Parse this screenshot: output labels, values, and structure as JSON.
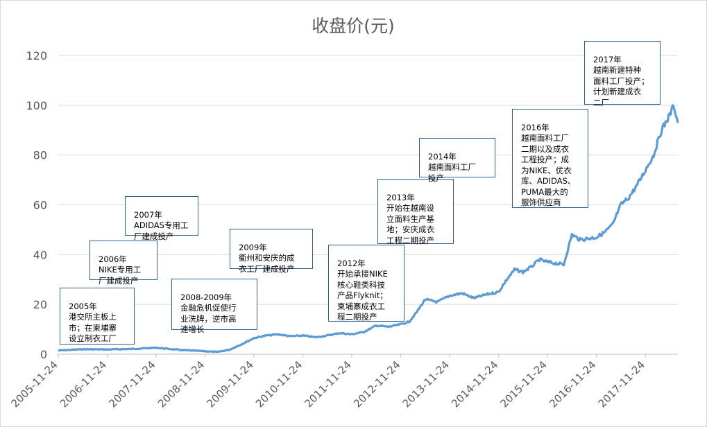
{
  "chart_data": {
    "type": "line",
    "title": "收盘价(元)",
    "xlabel": "",
    "ylabel": "",
    "ylim": [
      0,
      120
    ],
    "yticks": [
      0,
      20,
      40,
      60,
      80,
      100,
      120
    ],
    "grid": true,
    "legend": "none",
    "xticks": [
      "2005-11-24",
      "2006-11-24",
      "2007-11-24",
      "2008-11-24",
      "2009-11-24",
      "2010-11-24",
      "2011-11-24",
      "2012-11-24",
      "2013-11-24",
      "2014-11-24",
      "2015-11-24",
      "2016-11-24",
      "2017-11-24"
    ],
    "series": [
      {
        "color": "#5b9bd5",
        "x": [
          "2005-11-24",
          "2006-05-24",
          "2006-11-24",
          "2007-05-24",
          "2007-11-24",
          "2008-05-24",
          "2008-11-24",
          "2009-02-24",
          "2009-05-24",
          "2009-08-24",
          "2009-11-24",
          "2010-02-24",
          "2010-05-24",
          "2010-08-24",
          "2010-11-24",
          "2011-02-24",
          "2011-05-24",
          "2011-08-24",
          "2011-11-24",
          "2012-02-24",
          "2012-05-24",
          "2012-08-24",
          "2012-11-24",
          "2013-01-24",
          "2013-03-24",
          "2013-05-24",
          "2013-08-24",
          "2013-11-24",
          "2014-02-24",
          "2014-05-24",
          "2014-08-24",
          "2014-11-24",
          "2015-01-24",
          "2015-03-24",
          "2015-05-24",
          "2015-07-24",
          "2015-09-24",
          "2015-11-24",
          "2016-01-24",
          "2016-03-24",
          "2016-05-24",
          "2016-07-24",
          "2016-09-24",
          "2016-11-24",
          "2017-01-24",
          "2017-03-24",
          "2017-05-24",
          "2017-07-24",
          "2017-09-24",
          "2017-11-24",
          "2018-01-24",
          "2018-03-24",
          "2018-05-24",
          "2018-06-24",
          "2018-07-24"
        ],
        "values": [
          1.5,
          2.0,
          1.9,
          2.1,
          2.6,
          1.7,
          1.2,
          0.9,
          1.8,
          4.0,
          6.5,
          7.5,
          8.0,
          7.2,
          7.5,
          6.8,
          7.5,
          8.5,
          8.0,
          9.0,
          11.5,
          11.0,
          12.0,
          13.0,
          17.0,
          22.0,
          21.0,
          23.5,
          24.5,
          22.5,
          24.0,
          25.0,
          30.0,
          34.0,
          33.0,
          35.0,
          38.0,
          37.0,
          36.5,
          36.0,
          48.0,
          46.0,
          46.5,
          47.0,
          49.0,
          52.0,
          60.0,
          63.0,
          68.0,
          74.0,
          80.0,
          90.0,
          96.0,
          100.0,
          93.0
        ]
      }
    ]
  },
  "annotations": [
    {
      "year": "2005年",
      "text": "港交所主板上\n市；在柬埔寨\n设立制衣工厂"
    },
    {
      "year": "2006年",
      "text": "NIKE专用工\n厂建成投产"
    },
    {
      "year": "2007年",
      "text": "ADIDAS专用工\n厂建成投产"
    },
    {
      "year": "2008-2009年",
      "text": "金融危机促使行\n业洗牌，逆市高\n速增长"
    },
    {
      "year": "2009年",
      "text": "衢州和安庆的成\n衣工厂建成投产"
    },
    {
      "year": "2012年",
      "text": "开始承接NIKE\n核心鞋类科技\n产品Flyknit；\n柬埔寨成衣工\n程二期投产"
    },
    {
      "year": "2013年",
      "text": "开始在越南设\n立面料生产基\n地；安庆成衣\n工程二期投产"
    },
    {
      "year": "2014年",
      "text": "越南面料工厂\n投产"
    },
    {
      "year": "2016年",
      "text": "越南面料工厂\n二期以及成衣\n工程投产；成\n为NIKE、优衣\n库、ADIDAS、\nPUMA最大的\n服饰供应商"
    },
    {
      "year": "2017年",
      "text": "越南新建特种\n面料工厂投产；\n计划新建成衣\n二厂"
    }
  ]
}
